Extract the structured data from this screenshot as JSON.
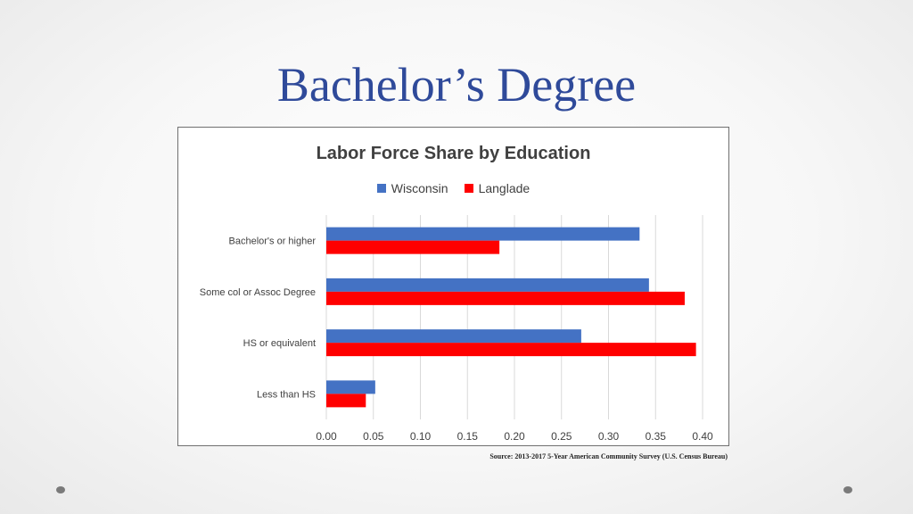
{
  "slide": {
    "title": "Bachelor’s Degree",
    "source": "Source: 2013-2017 5-Year American Community Survey (U.S. Census Bureau)"
  },
  "colors": {
    "title": "#2f4a9a",
    "wisconsin": "#4472c4",
    "langlade": "#ff0000"
  },
  "chart_data": {
    "type": "bar",
    "orientation": "horizontal",
    "title": "Labor Force Share by Education",
    "categories": [
      "Bachelor's or higher",
      "Some col or Assoc Degree",
      "HS or equivalent",
      "Less than HS"
    ],
    "series": [
      {
        "name": "Wisconsin",
        "color": "#4472c4",
        "values": [
          0.333,
          0.343,
          0.271,
          0.052
        ]
      },
      {
        "name": "Langlade",
        "color": "#ff0000",
        "values": [
          0.184,
          0.381,
          0.393,
          0.042
        ]
      }
    ],
    "xlim": [
      0,
      0.4
    ],
    "xticks": [
      "0.00",
      "0.05",
      "0.10",
      "0.15",
      "0.20",
      "0.25",
      "0.30",
      "0.35",
      "0.40"
    ],
    "grid": true,
    "legend_position": "top"
  }
}
